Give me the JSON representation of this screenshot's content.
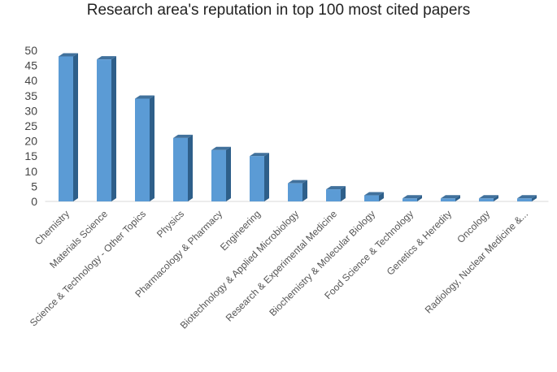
{
  "chart_data": {
    "type": "bar",
    "title": "Research area's reputation in top 100 most cited papers",
    "categories": [
      "Chemistry",
      "Materials Science",
      "Science & Technology - Other Topics",
      "Physics",
      "Pharmacology & Pharmacy",
      "Engineering",
      "Biotechnology & Applied Microbiology",
      "Research & Experimental Medicine",
      "Biochemistry & Molecular Biology",
      "Food Science & Technology",
      "Genetics & Heredity",
      "Oncology",
      "Radiology, Nuclear Medicine &..."
    ],
    "values": [
      48,
      47,
      34,
      21,
      17,
      15,
      6,
      4,
      2,
      1,
      1,
      1,
      1
    ],
    "xlabel": "",
    "ylabel": "",
    "ylim": [
      0,
      50
    ],
    "yticks": [
      0,
      5,
      10,
      15,
      20,
      25,
      30,
      35,
      40,
      45,
      50
    ],
    "grid": false,
    "legend": "none",
    "style": "3d-column",
    "colors": {
      "bar_front": "#5b9bd5",
      "bar_side": "#2e5f8a",
      "bar_top": "#41719c"
    }
  }
}
